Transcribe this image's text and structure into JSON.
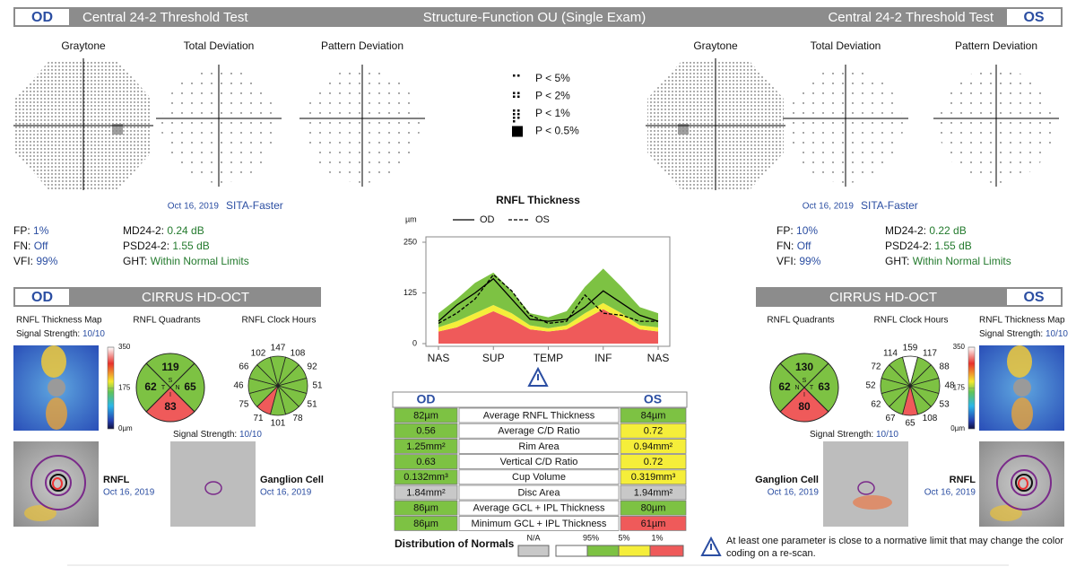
{
  "header": {
    "left_eye": "OD",
    "left_test": "Central 24-2 Threshold Test",
    "title": "Structure-Function OU (Single Exam)",
    "right_test": "Central 24-2 Threshold Test",
    "right_eye": "OS"
  },
  "visual_fields": {
    "left": {
      "plots": [
        "Graytone",
        "Total Deviation",
        "Pattern Deviation"
      ],
      "date": "Oct 16, 2019",
      "strategy": "SITA-Faster",
      "stats": [
        {
          "label": "FP:",
          "value": "1%"
        },
        {
          "label": "FN:",
          "value": "Off"
        },
        {
          "label": "VFI:",
          "value": "99%"
        },
        {
          "label": "MD24-2:",
          "value": "0.24 dB"
        },
        {
          "label": "PSD24-2:",
          "value": "1.55 dB"
        },
        {
          "label": "GHT:",
          "value": "Within Normal Limits"
        }
      ]
    },
    "right": {
      "plots": [
        "Graytone",
        "Total Deviation",
        "Pattern Deviation"
      ],
      "date": "Oct 16, 2019",
      "strategy": "SITA-Faster",
      "stats": [
        {
          "label": "FP:",
          "value": "10%"
        },
        {
          "label": "FN:",
          "value": "Off"
        },
        {
          "label": "VFI:",
          "value": "99%"
        },
        {
          "label": "MD24-2:",
          "value": "0.22 dB"
        },
        {
          "label": "PSD24-2:",
          "value": "1.55 dB"
        },
        {
          "label": "GHT:",
          "value": "Within Normal Limits"
        }
      ]
    }
  },
  "probability_legend": [
    "P < 5%",
    "P < 2%",
    "P < 1%",
    "P < 0.5%"
  ],
  "rnfl_chart": {
    "type": "line",
    "title": "RNFL Thickness",
    "y_label": "µm",
    "xlim": [
      0,
      360
    ],
    "ylim": [
      0,
      250
    ],
    "yticks": [
      0,
      125,
      250
    ],
    "xticks": [
      {
        "value": 0,
        "label": "NAS"
      },
      {
        "value": 90,
        "label": "SUP"
      },
      {
        "value": 180,
        "label": "TEMP"
      },
      {
        "value": 270,
        "label": "INF"
      },
      {
        "value": 360,
        "label": "NAS"
      }
    ],
    "x": [
      0,
      30,
      60,
      90,
      120,
      150,
      180,
      210,
      240,
      270,
      300,
      330,
      360
    ],
    "series": [
      {
        "name": "OD",
        "color": "#000000",
        "dashed": false,
        "values": [
          55,
          95,
          125,
          160,
          110,
          60,
          55,
          60,
          90,
          130,
          100,
          70,
          55
        ]
      },
      {
        "name": "OS",
        "color": "#000000",
        "dashed": true,
        "values": [
          50,
          75,
          110,
          170,
          130,
          70,
          50,
          55,
          120,
          75,
          70,
          55,
          55
        ]
      }
    ],
    "percentile_bands": [
      {
        "color": "#ef5a5a",
        "values": [
          30,
          40,
          60,
          80,
          60,
          35,
          30,
          35,
          60,
          85,
          60,
          35,
          30
        ]
      },
      {
        "color": "#f5ee3a",
        "values": [
          40,
          55,
          75,
          95,
          75,
          45,
          38,
          45,
          75,
          100,
          75,
          45,
          40
        ]
      },
      {
        "color": "#7dc243",
        "values": [
          75,
          110,
          150,
          175,
          130,
          75,
          65,
          80,
          140,
          185,
          140,
          90,
          75
        ]
      }
    ]
  },
  "oct": {
    "left": {
      "eye": "OD",
      "title": "CIRRUS HD-OCT",
      "map_label": "RNFL Thickness Map",
      "signal_label": "Signal Strength:",
      "signal": "10/10",
      "scale": [
        350,
        175,
        {
          "value": 0,
          "label": "0µm"
        }
      ],
      "scale_max": 350,
      "quadrants_label": "RNFL Quadrants",
      "quadrants": [
        {
          "letter": "S",
          "value": 119,
          "color": "#7dc243"
        },
        {
          "letter": "N",
          "value": 65,
          "color": "#7dc243"
        },
        {
          "letter": "I",
          "value": 83,
          "color": "#ef5a5a"
        },
        {
          "letter": "T",
          "value": 62,
          "color": "#7dc243"
        }
      ],
      "clock_label": "RNFL Clock Hours",
      "clock_hours": [
        147,
        108,
        92,
        51,
        51,
        78,
        101,
        71,
        75,
        46,
        66,
        102
      ],
      "clock_colors": [
        "#7dc243",
        "#7dc243",
        "#7dc243",
        "#7dc243",
        "#7dc243",
        "#7dc243",
        "#7dc243",
        "#ef5a5a",
        "#7dc243",
        "#7dc243",
        "#7dc243",
        "#7dc243"
      ],
      "ganglion_signal_label": "Signal Strength:",
      "ganglion_signal": "10/10",
      "rnfl_image_label": "RNFL",
      "rnfl_date": "Oct 16, 2019",
      "ganglion_label": "Ganglion Cell",
      "ganglion_date": "Oct 16, 2019"
    },
    "right": {
      "eye": "OS",
      "title": "CIRRUS HD-OCT",
      "map_label": "RNFL Thickness Map",
      "signal_label": "Signal Strength:",
      "signal": "10/10",
      "scale": [
        350,
        175,
        {
          "value": 0,
          "label": "0µm"
        }
      ],
      "scale_max": 350,
      "quadrants_label": "RNFL Quadrants",
      "quadrants": [
        {
          "letter": "S",
          "value": 130,
          "color": "#7dc243"
        },
        {
          "letter": "T",
          "value": 63,
          "color": "#7dc243"
        },
        {
          "letter": "I",
          "value": 80,
          "color": "#ef5a5a"
        },
        {
          "letter": "N",
          "value": 62,
          "color": "#7dc243"
        }
      ],
      "clock_label": "RNFL Clock Hours",
      "clock_hours": [
        159,
        117,
        88,
        48,
        53,
        108,
        65,
        67,
        62,
        52,
        72,
        114
      ],
      "clock_colors": [
        "#ffffff",
        "#7dc243",
        "#7dc243",
        "#7dc243",
        "#7dc243",
        "#7dc243",
        "#ef5a5a",
        "#7dc243",
        "#7dc243",
        "#7dc243",
        "#7dc243",
        "#7dc243"
      ],
      "ganglion_signal_label": "Signal Strength:",
      "ganglion_signal": "10/10",
      "rnfl_image_label": "RNFL",
      "rnfl_date": "Oct 16, 2019",
      "ganglion_label": "Ganglion Cell",
      "ganglion_date": "Oct 16, 2019"
    }
  },
  "table": {
    "headers": [
      "OD",
      "OS"
    ],
    "rows": [
      {
        "od": "82µm",
        "parameter": "Average RNFL Thickness",
        "os": "84µm",
        "od_color": "#7dc243",
        "os_color": "#7dc243"
      },
      {
        "od": "0.56",
        "parameter": "Average C/D Ratio",
        "os": "0.72",
        "od_color": "#7dc243",
        "os_color": "#f5ee3a"
      },
      {
        "od": "1.25mm²",
        "parameter": "Rim Area",
        "os": "0.94mm²",
        "od_color": "#7dc243",
        "os_color": "#f5ee3a"
      },
      {
        "od": "0.63",
        "parameter": "Vertical C/D Ratio",
        "os": "0.72",
        "od_color": "#7dc243",
        "os_color": "#f5ee3a"
      },
      {
        "od": "0.132mm³",
        "parameter": "Cup Volume",
        "os": "0.319mm³",
        "od_color": "#7dc243",
        "os_color": "#f5ee3a"
      },
      {
        "od": "1.84mm²",
        "parameter": "Disc Area",
        "os": "1.94mm²",
        "od_color": "#c8c8c8",
        "os_color": "#c8c8c8"
      },
      {
        "od": "86µm",
        "parameter": "Average GCL + IPL Thickness",
        "os": "80µm",
        "od_color": "#7dc243",
        "os_color": "#7dc243"
      },
      {
        "od": "86µm",
        "parameter": "Minimum GCL + IPL Thickness",
        "os": "61µm",
        "od_color": "#7dc243",
        "os_color": "#ef5a5a"
      }
    ]
  },
  "distribution": {
    "title": "Distribution of Normals",
    "labels": [
      "N/A",
      "95%",
      "5%",
      "1%"
    ]
  },
  "note": "At least one parameter is close to a normative limit that may change the color coding on a re-scan."
}
